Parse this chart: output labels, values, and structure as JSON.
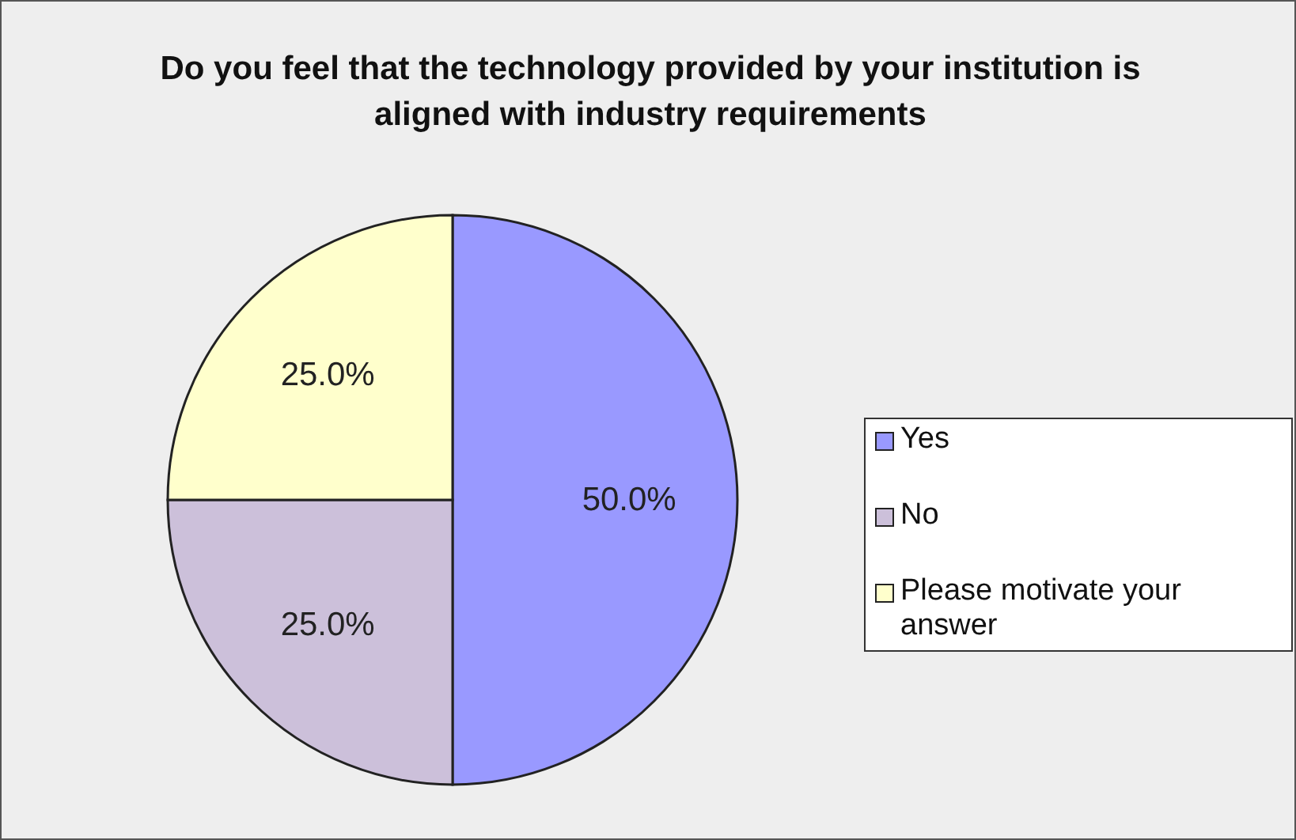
{
  "chart_data": {
    "type": "pie",
    "title": "Do you feel that the technology provided by your institution is aligned with industry requirements",
    "categories": [
      "Yes",
      "No",
      "Please motivate your answer"
    ],
    "values": [
      50,
      25,
      25
    ],
    "colors": [
      "#9999ff",
      "#ccc0da",
      "#ffffcc"
    ],
    "value_labels": [
      "50.0%",
      "25.0%",
      "25.0%"
    ],
    "legend": "right"
  }
}
